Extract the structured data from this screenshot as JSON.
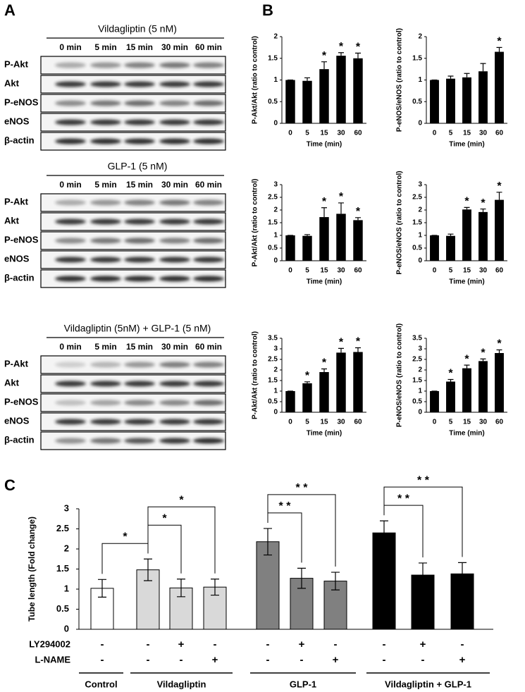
{
  "panels": [
    "A",
    "B",
    "C"
  ],
  "blots": [
    {
      "title": "Vildagliptin (5 nM)",
      "lanes": [
        "0 min",
        "5 min",
        "15 min",
        "30 min",
        "60 min"
      ],
      "rows": [
        "P-Akt",
        "Akt",
        "P-eNOS",
        "eNOS",
        "β-actin"
      ]
    },
    {
      "title": "GLP-1 (5 nM)",
      "lanes": [
        "0 min",
        "5 min",
        "15 min",
        "30 min",
        "60 min"
      ],
      "rows": [
        "P-Akt",
        "Akt",
        "P-eNOS",
        "eNOS",
        "β-actin"
      ]
    },
    {
      "title": "Vildagliptin (5nM) + GLP-1 (5 nM)",
      "lanes": [
        "0 min",
        "5 min",
        "15 min",
        "30 min",
        "60 min"
      ],
      "rows": [
        "P-Akt",
        "Akt",
        "P-eNOS",
        "eNOS",
        "β-actin"
      ]
    }
  ],
  "chart_data": [
    {
      "type": "bar",
      "ylabel": "P-Akt/Akt (ratio to control)",
      "xlabel": "Time (min)",
      "categories": [
        "0",
        "5",
        "15",
        "30",
        "60"
      ],
      "values": [
        1,
        0.98,
        1.25,
        1.56,
        1.5
      ],
      "errors": [
        0,
        0.07,
        0.17,
        0.07,
        0.12
      ],
      "significance": [
        null,
        null,
        "*",
        "*",
        "*"
      ],
      "color": "#000000",
      "ylim": [
        0,
        2
      ],
      "yticks": [
        0,
        0.5,
        1,
        1.5,
        2
      ]
    },
    {
      "type": "bar",
      "ylabel": "P-eNOS/eNOS (ratio to control)",
      "xlabel": "Time (min)",
      "categories": [
        "0",
        "5",
        "15",
        "30",
        "60"
      ],
      "values": [
        1,
        1.03,
        1.06,
        1.2,
        1.65
      ],
      "errors": [
        0,
        0.06,
        0.09,
        0.18,
        0.1
      ],
      "significance": [
        null,
        null,
        null,
        null,
        "*"
      ],
      "color": "#000000",
      "ylim": [
        0,
        2
      ],
      "yticks": [
        0,
        0.5,
        1,
        1.5,
        2
      ]
    },
    {
      "type": "bar",
      "ylabel": "P-Akt/Akt (ratio to control)",
      "xlabel": "Time (min)",
      "categories": [
        "0",
        "5",
        "15",
        "30",
        "60"
      ],
      "values": [
        1,
        0.98,
        1.72,
        1.85,
        1.6
      ],
      "errors": [
        0,
        0.05,
        0.37,
        0.43,
        0.1
      ],
      "significance": [
        null,
        null,
        "*",
        "*",
        "*"
      ],
      "color": "#000000",
      "ylim": [
        0,
        3
      ],
      "yticks": [
        0,
        0.5,
        1,
        1.5,
        2,
        2.5,
        3
      ]
    },
    {
      "type": "bar",
      "ylabel": "P-eNOS/eNOS (ratio to control)",
      "xlabel": "Time (min)",
      "categories": [
        "0",
        "5",
        "15",
        "30",
        "60"
      ],
      "values": [
        1,
        0.98,
        2.02,
        1.92,
        2.4
      ],
      "errors": [
        0,
        0.07,
        0.08,
        0.12,
        0.3
      ],
      "significance": [
        null,
        null,
        "*",
        "*",
        "*"
      ],
      "color": "#000000",
      "ylim": [
        0,
        3
      ],
      "yticks": [
        0,
        0.5,
        1,
        1.5,
        2,
        2.5,
        3
      ]
    },
    {
      "type": "bar",
      "ylabel": "P-Akt/Akt (ratio to control)",
      "xlabel": "Time (min)",
      "categories": [
        "0",
        "5",
        "15",
        "30",
        "60"
      ],
      "values": [
        1,
        1.37,
        1.9,
        2.82,
        2.85
      ],
      "errors": [
        0,
        0.07,
        0.15,
        0.2,
        0.2
      ],
      "significance": [
        null,
        "*",
        "*",
        "*",
        "*"
      ],
      "color": "#000000",
      "ylim": [
        0,
        3.5
      ],
      "yticks": [
        0,
        0.5,
        1,
        1.5,
        2,
        2.5,
        3,
        3.5
      ]
    },
    {
      "type": "bar",
      "ylabel": "P-eNOS/eNOS (ratio to control)",
      "xlabel": "Time (min)",
      "categories": [
        "0",
        "5",
        "15",
        "30",
        "60"
      ],
      "values": [
        1,
        1.45,
        2.08,
        2.42,
        2.8
      ],
      "errors": [
        0,
        0.1,
        0.15,
        0.1,
        0.15
      ],
      "significance": [
        null,
        "*",
        "*",
        "*",
        "*"
      ],
      "color": "#000000",
      "ylim": [
        0,
        3.5
      ],
      "yticks": [
        0,
        0.5,
        1,
        1.5,
        2,
        2.5,
        3,
        3.5
      ]
    },
    {
      "type": "grouped-bar",
      "ylabel": "Tube length (Fold change)",
      "ylim": [
        0,
        3
      ],
      "yticks": [
        0,
        0.5,
        1,
        1.5,
        2,
        2.5,
        3
      ],
      "row_labels": [
        "LY294002",
        "L-NAME"
      ],
      "series": [
        {
          "name": "Control",
          "color": "#ffffff",
          "values": [
            1.02
          ],
          "errors": [
            0.22
          ],
          "treatments": [
            [
              "-",
              "-"
            ]
          ]
        },
        {
          "name": "Vildagliptin",
          "color": "#d9d9d9",
          "values": [
            1.48,
            1.03,
            1.05
          ],
          "errors": [
            0.27,
            0.22,
            0.2
          ],
          "treatments": [
            [
              "-",
              "-"
            ],
            [
              "+",
              "-"
            ],
            [
              "-",
              "+"
            ]
          ]
        },
        {
          "name": "GLP-1",
          "color": "#808080",
          "values": [
            2.18,
            1.27,
            1.2
          ],
          "errors": [
            0.33,
            0.25,
            0.22
          ],
          "treatments": [
            [
              "-",
              "-"
            ],
            [
              "+",
              "-"
            ],
            [
              "-",
              "+"
            ]
          ]
        },
        {
          "name": "Vildagliptin + GLP-1",
          "color": "#000000",
          "values": [
            2.4,
            1.35,
            1.38
          ],
          "errors": [
            0.3,
            0.3,
            0.28
          ],
          "treatments": [
            [
              "-",
              "-"
            ],
            [
              "+",
              "-"
            ],
            [
              "-",
              "+"
            ]
          ]
        }
      ],
      "comparisons": [
        {
          "bars": [
            0,
            1
          ],
          "label": "*"
        },
        {
          "bars": [
            1,
            2
          ],
          "label": "*"
        },
        {
          "bars": [
            1,
            3
          ],
          "label": "*"
        },
        {
          "bars": [
            4,
            5
          ],
          "label": "* *"
        },
        {
          "bars": [
            4,
            6
          ],
          "label": "* *"
        },
        {
          "bars": [
            7,
            8
          ],
          "label": "* *"
        },
        {
          "bars": [
            7,
            9
          ],
          "label": "* *"
        }
      ]
    }
  ]
}
